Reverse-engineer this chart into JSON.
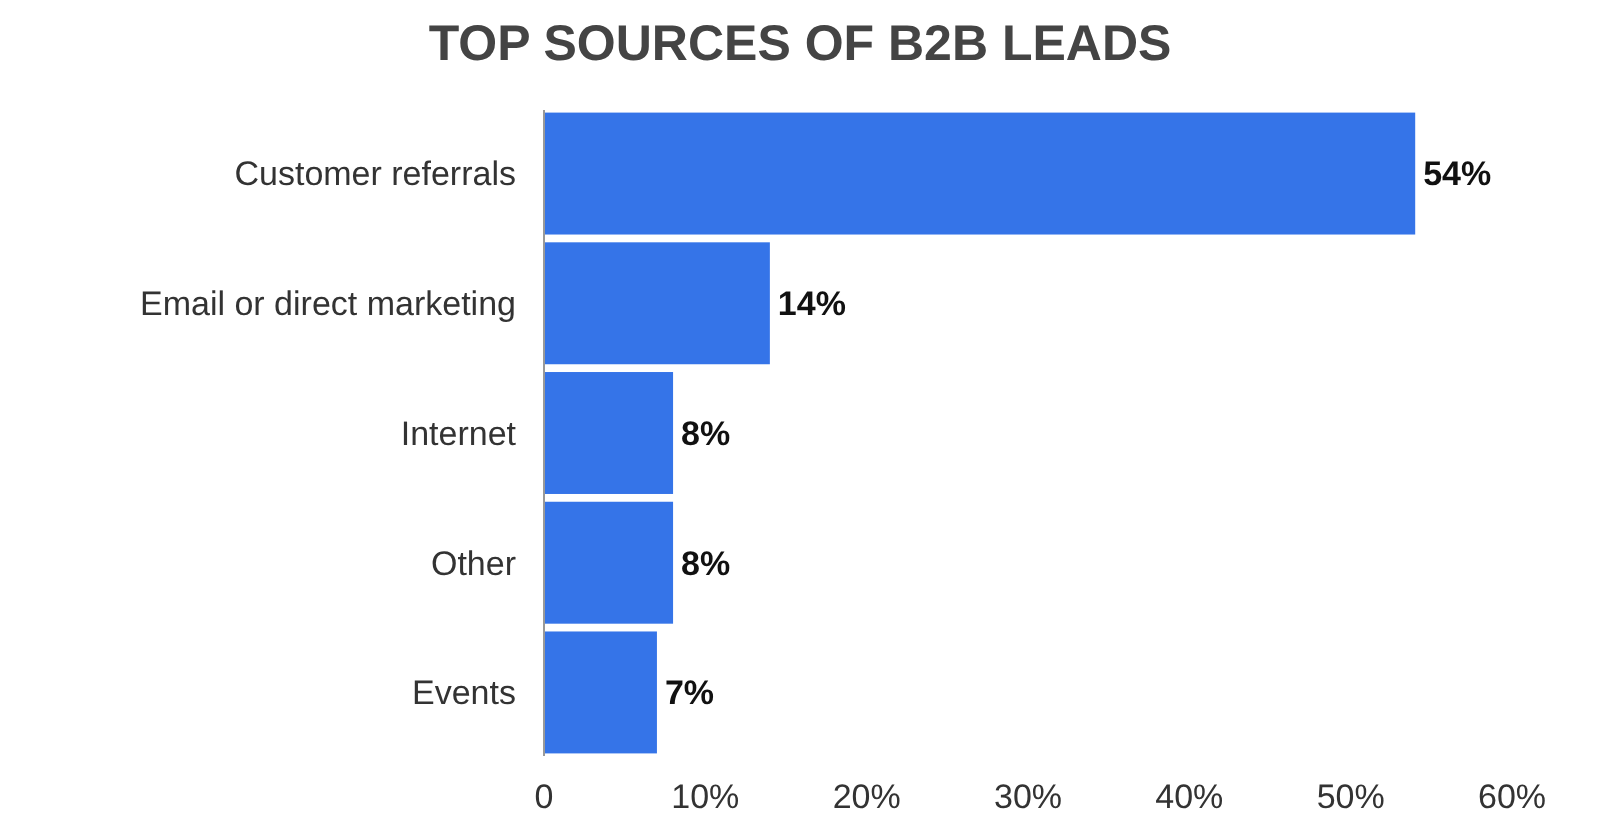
{
  "chart_data": {
    "type": "bar",
    "orientation": "horizontal",
    "title": "TOP SOURCES OF B2B LEADS",
    "categories": [
      "Customer referrals",
      "Email or direct marketing",
      "Internet",
      "Other",
      "Events"
    ],
    "values": [
      54,
      14,
      8,
      8,
      7
    ],
    "value_labels": [
      "54%",
      "14%",
      "8%",
      "8%",
      "7%"
    ],
    "color": "#3574e8",
    "xlim": [
      0,
      60
    ],
    "xticks": [
      0,
      {
        "value": 10,
        "label": "10%"
      },
      {
        "value": 20,
        "label": "20%"
      },
      {
        "value": 30,
        "label": "30%"
      },
      {
        "value": 40,
        "label": "40%"
      },
      {
        "value": 50,
        "label": "50%"
      },
      {
        "value": 60,
        "label": "60%"
      }
    ],
    "grid": false
  }
}
